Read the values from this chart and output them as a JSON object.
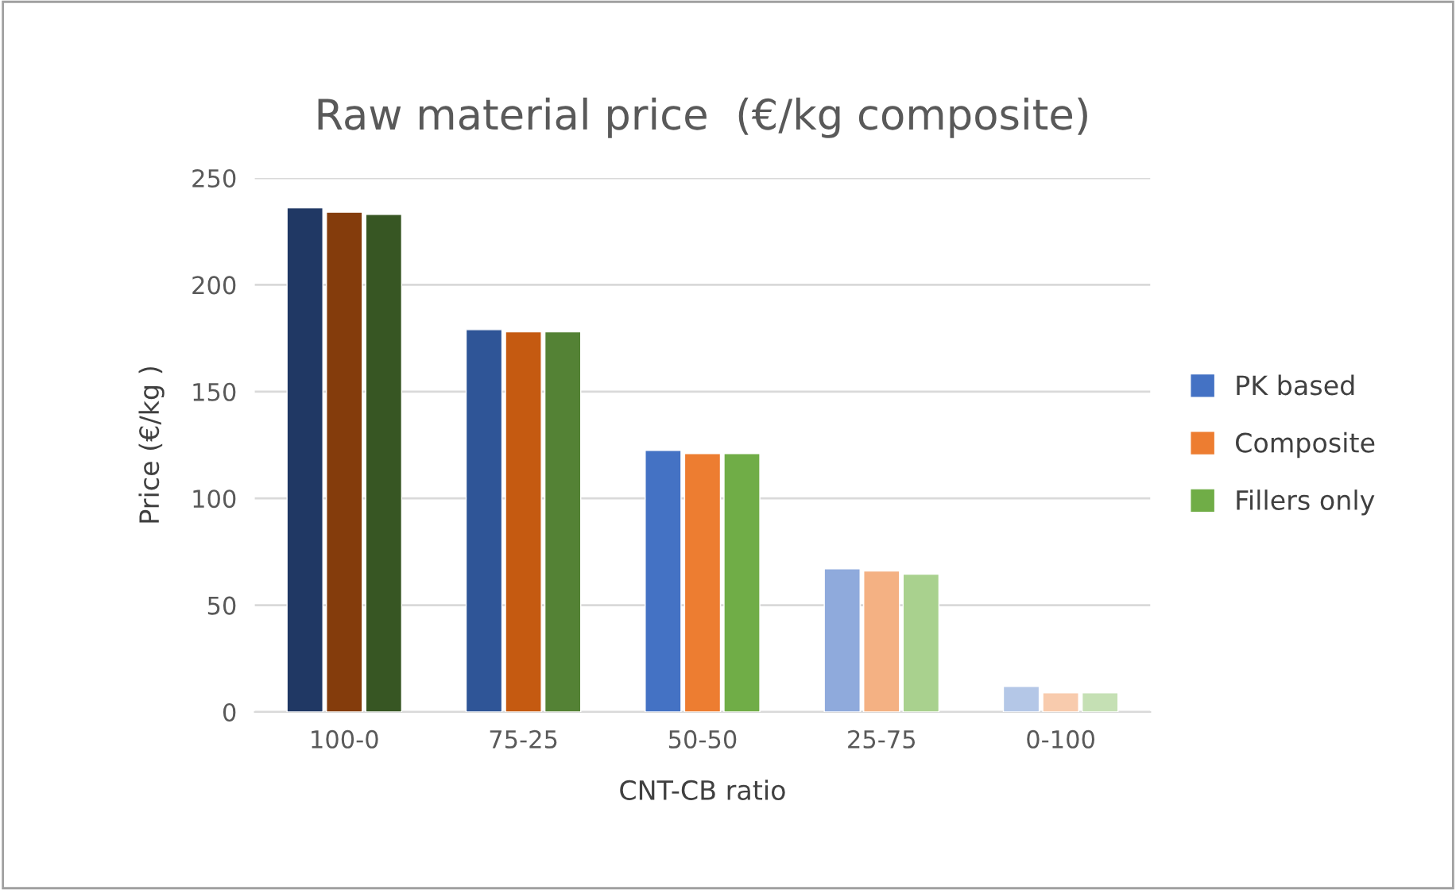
{
  "chart_data": {
    "type": "bar",
    "title": "Raw material price  (€/kg composite)",
    "xlabel": "CNT-CB ratio",
    "ylabel": "Price (€/kg )",
    "categories": [
      "100-0",
      "75-25",
      "50-50",
      "25-75",
      "0-100"
    ],
    "series": [
      {
        "name": "PK based",
        "color": "#4472c4",
        "colors": [
          "#203864",
          "#2f5597",
          "#4472c4",
          "#8faadc",
          "#b4c7e7"
        ],
        "values": [
          236,
          179,
          122.5,
          67,
          12
        ]
      },
      {
        "name": "Composite",
        "color": "#ed7d31",
        "colors": [
          "#843c0c",
          "#c55a11",
          "#ed7d31",
          "#f4b183",
          "#f8cbad"
        ],
        "values": [
          234,
          178,
          121,
          66,
          9
        ]
      },
      {
        "name": "Fillers only",
        "color": "#70ad47",
        "colors": [
          "#375623",
          "#548235",
          "#70ad47",
          "#a9d18e",
          "#c5e0b4"
        ],
        "values": [
          233,
          178,
          121,
          64.5,
          9
        ]
      }
    ],
    "ylim": [
      0,
      250
    ],
    "yticks": [
      0,
      50,
      100,
      150,
      200,
      250
    ],
    "grid": "y",
    "legend": "right"
  }
}
